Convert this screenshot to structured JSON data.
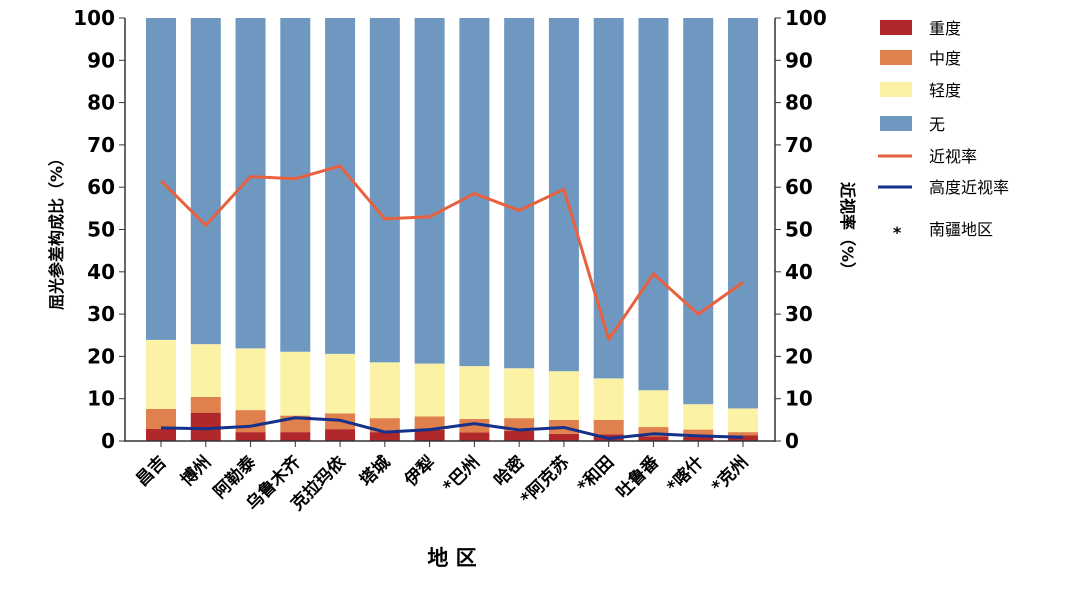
{
  "chart_data": {
    "type": "bar",
    "stacked": true,
    "xlabel": "地 区",
    "ylabel": "屈光参差构成比（%）",
    "y2label": "近视率（%）",
    "ylim": [
      0,
      100
    ],
    "y2lim": [
      0,
      100
    ],
    "yticks": [
      0,
      10,
      20,
      30,
      40,
      50,
      60,
      70,
      80,
      90,
      100
    ],
    "grid": false,
    "legend_position": "right",
    "categories": [
      "昌吉",
      "博州",
      "阿勒泰",
      "乌鲁木齐",
      "克拉玛依",
      "塔城",
      "伊犁",
      "*巴州",
      "哈密",
      "*阿克苏",
      "*和田",
      "吐鲁番",
      "*喀什",
      "*克州"
    ],
    "series": [
      {
        "name": "重度",
        "kind": "bar",
        "color": "#b0282a",
        "values": [
          2.9,
          6.7,
          2.1,
          2.1,
          2.8,
          2.1,
          2.6,
          2.0,
          2.4,
          1.7,
          1.6,
          1.1,
          1.0,
          1.3
        ]
      },
      {
        "name": "中度",
        "kind": "bar",
        "color": "#e0804d",
        "values": [
          4.7,
          3.7,
          5.2,
          3.9,
          3.7,
          3.3,
          3.2,
          3.2,
          3.0,
          3.3,
          3.4,
          2.2,
          1.7,
          0.8
        ]
      },
      {
        "name": "轻度",
        "kind": "bar",
        "color": "#fbf2a6",
        "values": [
          16.3,
          12.5,
          14.6,
          15.1,
          14.1,
          13.2,
          12.5,
          12.5,
          11.8,
          11.5,
          9.8,
          8.7,
          6.0,
          5.6
        ]
      },
      {
        "name": "无",
        "kind": "bar",
        "color": "#6f98c0",
        "values": [
          76.1,
          77.1,
          78.1,
          78.9,
          79.4,
          81.4,
          81.7,
          82.3,
          82.8,
          83.5,
          85.2,
          88.0,
          91.3,
          92.3
        ]
      },
      {
        "name": "近视率",
        "kind": "line",
        "axis": "right",
        "color": "#e8613f",
        "values": [
          61.5,
          51.0,
          62.5,
          62.0,
          65.0,
          52.5,
          53.0,
          58.5,
          54.5,
          59.5,
          24.0,
          39.5,
          30.0,
          37.5
        ]
      },
      {
        "name": "高度近视率",
        "kind": "line",
        "axis": "right",
        "color": "#15318a",
        "values": [
          3.1,
          2.9,
          3.5,
          5.5,
          4.9,
          2.1,
          2.7,
          4.1,
          2.6,
          3.2,
          0.6,
          1.7,
          1.2,
          0.9
        ]
      }
    ],
    "annotations": [
      {
        "marker": "*",
        "label": "南疆地区"
      }
    ]
  }
}
